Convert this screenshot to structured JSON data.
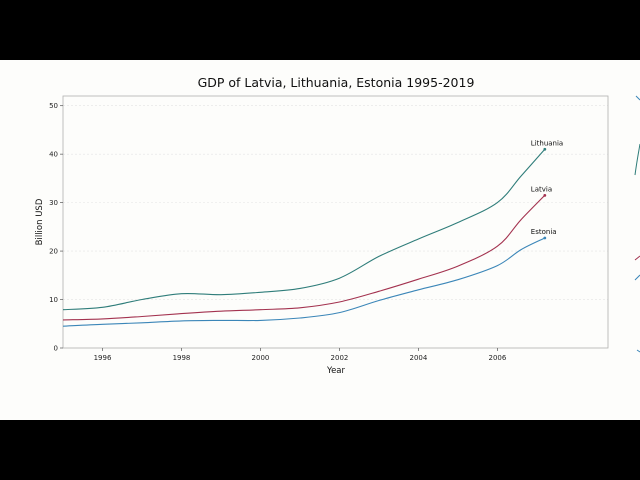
{
  "chart_data": {
    "type": "line",
    "title": "GDP of Latvia, Lithuania, Estonia 1995-2019",
    "xlabel": "Year",
    "ylabel": "Billion USD",
    "xlim": [
      1995,
      2008.8
    ],
    "ylim": [
      0,
      52
    ],
    "x_ticks": [
      "1996",
      "1998",
      "2000",
      "2002",
      "2004",
      "2006"
    ],
    "y_ticks": [
      "0",
      "10",
      "20",
      "30",
      "40",
      "50"
    ],
    "grid": true,
    "legend": "none; series labeled at line ends",
    "colors": {
      "Lithuania": "#2f7d7a",
      "Latvia": "#a3324f",
      "Estonia": "#3b86b8",
      "spine": "#b0b0b0",
      "background": "#fdfdfb"
    },
    "series": [
      {
        "name": "Lithuania",
        "points": [
          [
            1995,
            7.9
          ],
          [
            1996,
            8.4
          ],
          [
            1997,
            10.0
          ],
          [
            1998,
            11.2
          ],
          [
            1999,
            11.0
          ],
          [
            2000,
            11.5
          ],
          [
            2001,
            12.3
          ],
          [
            2002,
            14.4
          ],
          [
            2003,
            18.9
          ],
          [
            2004,
            22.5
          ],
          [
            2005,
            25.9
          ],
          [
            2006,
            30.0
          ],
          [
            2006.6,
            35.5
          ],
          [
            2007.2,
            41.0
          ]
        ]
      },
      {
        "name": "Latvia",
        "points": [
          [
            1995,
            5.8
          ],
          [
            1996,
            6.0
          ],
          [
            1997,
            6.5
          ],
          [
            1998,
            7.1
          ],
          [
            1999,
            7.6
          ],
          [
            2000,
            7.9
          ],
          [
            2001,
            8.3
          ],
          [
            2002,
            9.5
          ],
          [
            2003,
            11.7
          ],
          [
            2004,
            14.2
          ],
          [
            2005,
            16.9
          ],
          [
            2006,
            21.0
          ],
          [
            2006.6,
            26.5
          ],
          [
            2007.2,
            31.5
          ]
        ]
      },
      {
        "name": "Estonia",
        "points": [
          [
            1995,
            4.5
          ],
          [
            1996,
            4.9
          ],
          [
            1997,
            5.2
          ],
          [
            1998,
            5.6
          ],
          [
            1999,
            5.7
          ],
          [
            2000,
            5.7
          ],
          [
            2001,
            6.2
          ],
          [
            2002,
            7.3
          ],
          [
            2003,
            9.8
          ],
          [
            2004,
            12.0
          ],
          [
            2005,
            14.1
          ],
          [
            2006,
            17.0
          ],
          [
            2006.6,
            20.3
          ],
          [
            2007.2,
            22.7
          ]
        ]
      }
    ]
  }
}
